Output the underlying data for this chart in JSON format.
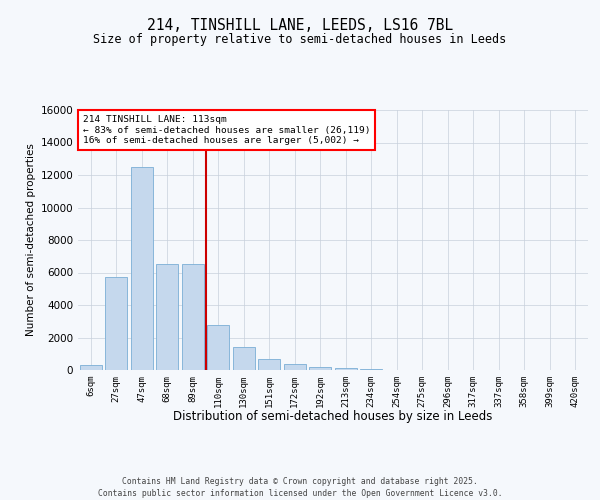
{
  "title_line1": "214, TINSHILL LANE, LEEDS, LS16 7BL",
  "title_line2": "Size of property relative to semi-detached houses in Leeds",
  "xlabel": "Distribution of semi-detached houses by size in Leeds",
  "ylabel": "Number of semi-detached properties",
  "footer_line1": "Contains HM Land Registry data © Crown copyright and database right 2025.",
  "footer_line2": "Contains public sector information licensed under the Open Government Licence v3.0.",
  "annotation_line1": "214 TINSHILL LANE: 113sqm",
  "annotation_line2": "← 83% of semi-detached houses are smaller (26,119)",
  "annotation_line3": "16% of semi-detached houses are larger (5,002) →",
  "bar_color": "#c5d8ed",
  "bar_edge_color": "#7aaed6",
  "vline_color": "#cc0000",
  "vline_position": 4.5,
  "background_color": "#f5f8fc",
  "grid_color": "#c8d0dc",
  "categories": [
    "6sqm",
    "27sqm",
    "47sqm",
    "68sqm",
    "89sqm",
    "110sqm",
    "130sqm",
    "151sqm",
    "172sqm",
    "192sqm",
    "213sqm",
    "234sqm",
    "254sqm",
    "275sqm",
    "296sqm",
    "317sqm",
    "337sqm",
    "358sqm",
    "399sqm",
    "420sqm"
  ],
  "values": [
    300,
    5700,
    12500,
    6500,
    6500,
    2800,
    1400,
    700,
    350,
    200,
    100,
    50,
    30,
    15,
    10,
    5,
    3,
    2,
    1,
    1
  ],
  "ylim_max": 16000,
  "yticks": [
    0,
    2000,
    4000,
    6000,
    8000,
    10000,
    12000,
    14000,
    16000
  ]
}
